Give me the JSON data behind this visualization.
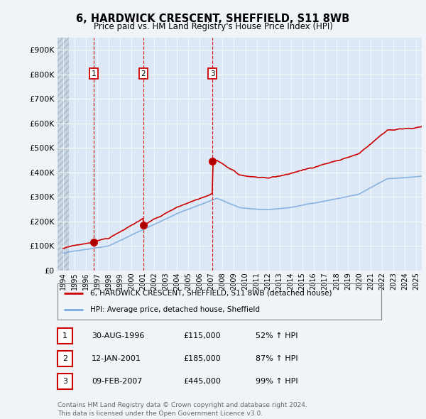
{
  "title": "6, HARDWICK CRESCENT, SHEFFIELD, S11 8WB",
  "subtitle": "Price paid vs. HM Land Registry's House Price Index (HPI)",
  "background_color": "#f0f4f8",
  "plot_bg_color": "#dce8f5",
  "red_line_color": "#cc0000",
  "blue_line_color": "#7aaadd",
  "legend_label_red": "6, HARDWICK CRESCENT, SHEFFIELD, S11 8WB (detached house)",
  "legend_label_blue": "HPI: Average price, detached house, Sheffield",
  "transactions": [
    {
      "num": 1,
      "date": "30-AUG-1996",
      "price": 115000,
      "pct": "52%",
      "year": 1996.67
    },
    {
      "num": 2,
      "date": "12-JAN-2001",
      "price": 185000,
      "pct": "87%",
      "year": 2001.04
    },
    {
      "num": 3,
      "date": "09-FEB-2007",
      "price": 445000,
      "pct": "99%",
      "year": 2007.12
    }
  ],
  "footer": "Contains HM Land Registry data © Crown copyright and database right 2024.\nThis data is licensed under the Open Government Licence v3.0.",
  "xmin": 1993.5,
  "xmax": 2025.5,
  "ymin": 0,
  "ymax": 950000,
  "hatch_end": 1994.5,
  "yticks": [
    0,
    100000,
    200000,
    300000,
    400000,
    500000,
    600000,
    700000,
    800000,
    900000
  ],
  "ytick_labels": [
    "£0",
    "£100K",
    "£200K",
    "£300K",
    "£400K",
    "£500K",
    "£600K",
    "£700K",
    "£800K",
    "£900K"
  ]
}
